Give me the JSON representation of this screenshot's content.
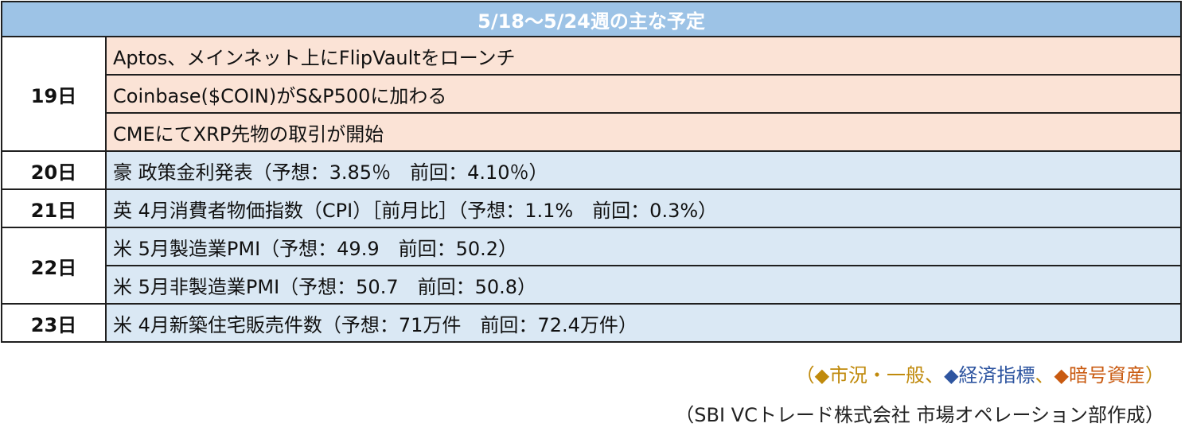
{
  "title": "5/18～5/24週の主な予定",
  "schedule": [
    {
      "day": "19日",
      "events": [
        {
          "text": "Aptos、メインネット上にFlipVaultをローンチ",
          "category": "crypto"
        },
        {
          "text": "Coinbase($COIN)がS&P500に加わる",
          "category": "crypto"
        },
        {
          "text": "CMEにてXRP先物の取引が開始",
          "category": "crypto"
        }
      ]
    },
    {
      "day": "20日",
      "events": [
        {
          "text": "豪 政策金利発表（予想：3.85％　前回：4.10％）",
          "category": "economy"
        }
      ]
    },
    {
      "day": "21日",
      "events": [
        {
          "text": "英 4月消費者物価指数（CPI）［前月比］（予想：1.1%　前回：0.3%）",
          "category": "economy"
        }
      ]
    },
    {
      "day": "22日",
      "events": [
        {
          "text": "米 5月製造業PMI（予想：49.9　前回：50.2）",
          "category": "economy"
        },
        {
          "text": "米 5月非製造業PMI（予想：50.7　前回：50.8）",
          "category": "economy"
        }
      ]
    },
    {
      "day": "23日",
      "events": [
        {
          "text": "米 4月新築住宅販売件数（予想：71万件　前回：72.4万件）",
          "category": "economy"
        }
      ]
    }
  ],
  "legend": {
    "open": "（",
    "close": "）",
    "sep1": "、",
    "sep2": "、",
    "market": {
      "symbol": "◆",
      "label": "市況・一般",
      "color": "#c08a0c"
    },
    "economy": {
      "symbol": "◆",
      "label": "経済指標",
      "color": "#2e55a0"
    },
    "crypto": {
      "symbol": "◆",
      "label": "暗号資産",
      "color": "#c95a10"
    }
  },
  "credit": "（SBI VCトレード株式会社 市場オペレーション部作成）",
  "colors": {
    "header_bg": "#9dc3e6",
    "crypto_row_bg": "#fbe3d6",
    "economy_row_bg": "#dae8f4"
  }
}
